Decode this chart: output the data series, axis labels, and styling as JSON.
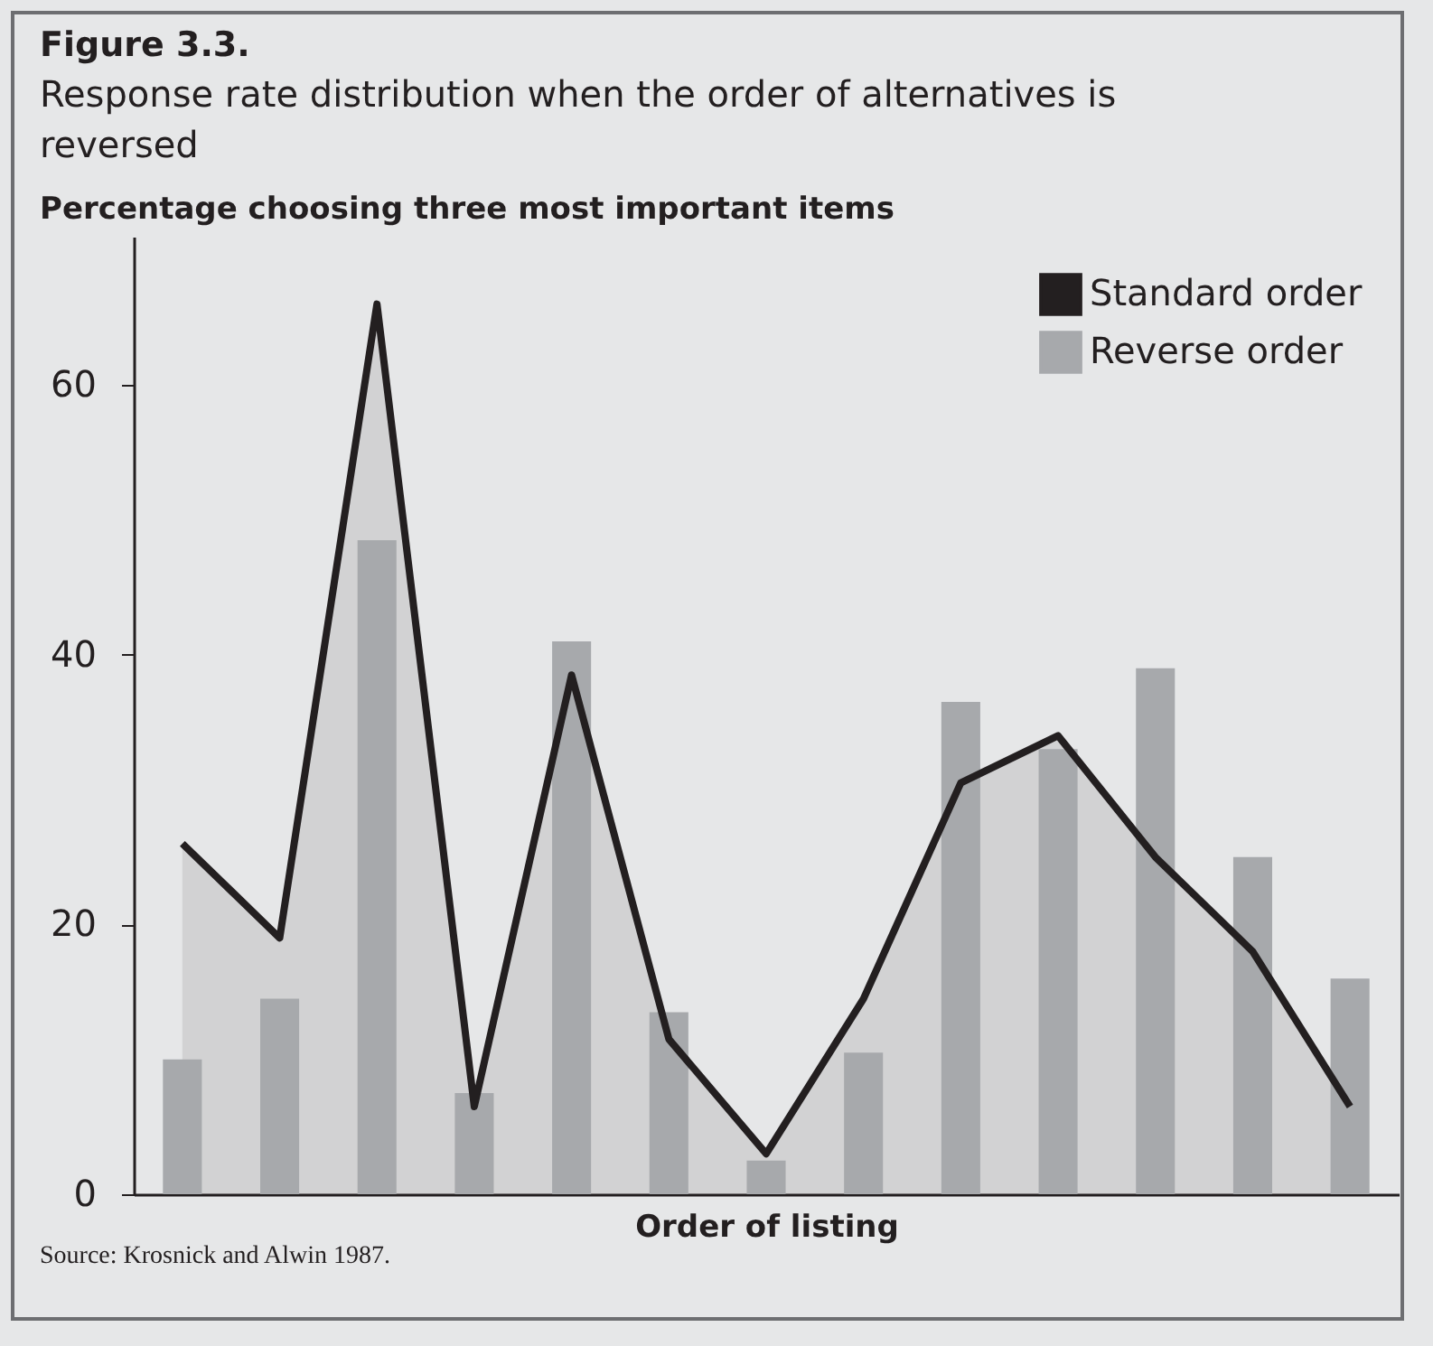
{
  "chart_data": {
    "type": "bar",
    "title": "Figure 3.3.",
    "subtitle": "Response rate distribution when the order of alternatives is reversed",
    "ylabel": "Percentage choosing three most important items",
    "xlabel": "Order of listing",
    "annotations": [
      "Source: Krosnick and Alwin 1987."
    ],
    "categories": [
      null,
      null,
      null,
      null,
      null,
      null,
      null,
      null,
      null,
      null,
      null,
      null,
      null
    ],
    "series": [
      {
        "name": "Standard order",
        "type": "area",
        "color": "#231f20",
        "values": [
          26,
          19,
          66,
          6.5,
          38.5,
          11.5,
          3,
          14.5,
          30.5,
          34,
          25,
          18,
          6.5
        ]
      },
      {
        "name": "Reverse order",
        "color": "#a7a9ac",
        "values": [
          10,
          14.5,
          48.5,
          7.5,
          41,
          13.5,
          2.5,
          10.5,
          36.5,
          33,
          39,
          25,
          16
        ]
      }
    ],
    "ylim": [
      0,
      71
    ],
    "yticks": [
      0,
      20,
      40,
      60
    ],
    "grid": false,
    "legend": "top right",
    "tick_labels": "y",
    "marker": "none",
    "line_style": "solid"
  }
}
